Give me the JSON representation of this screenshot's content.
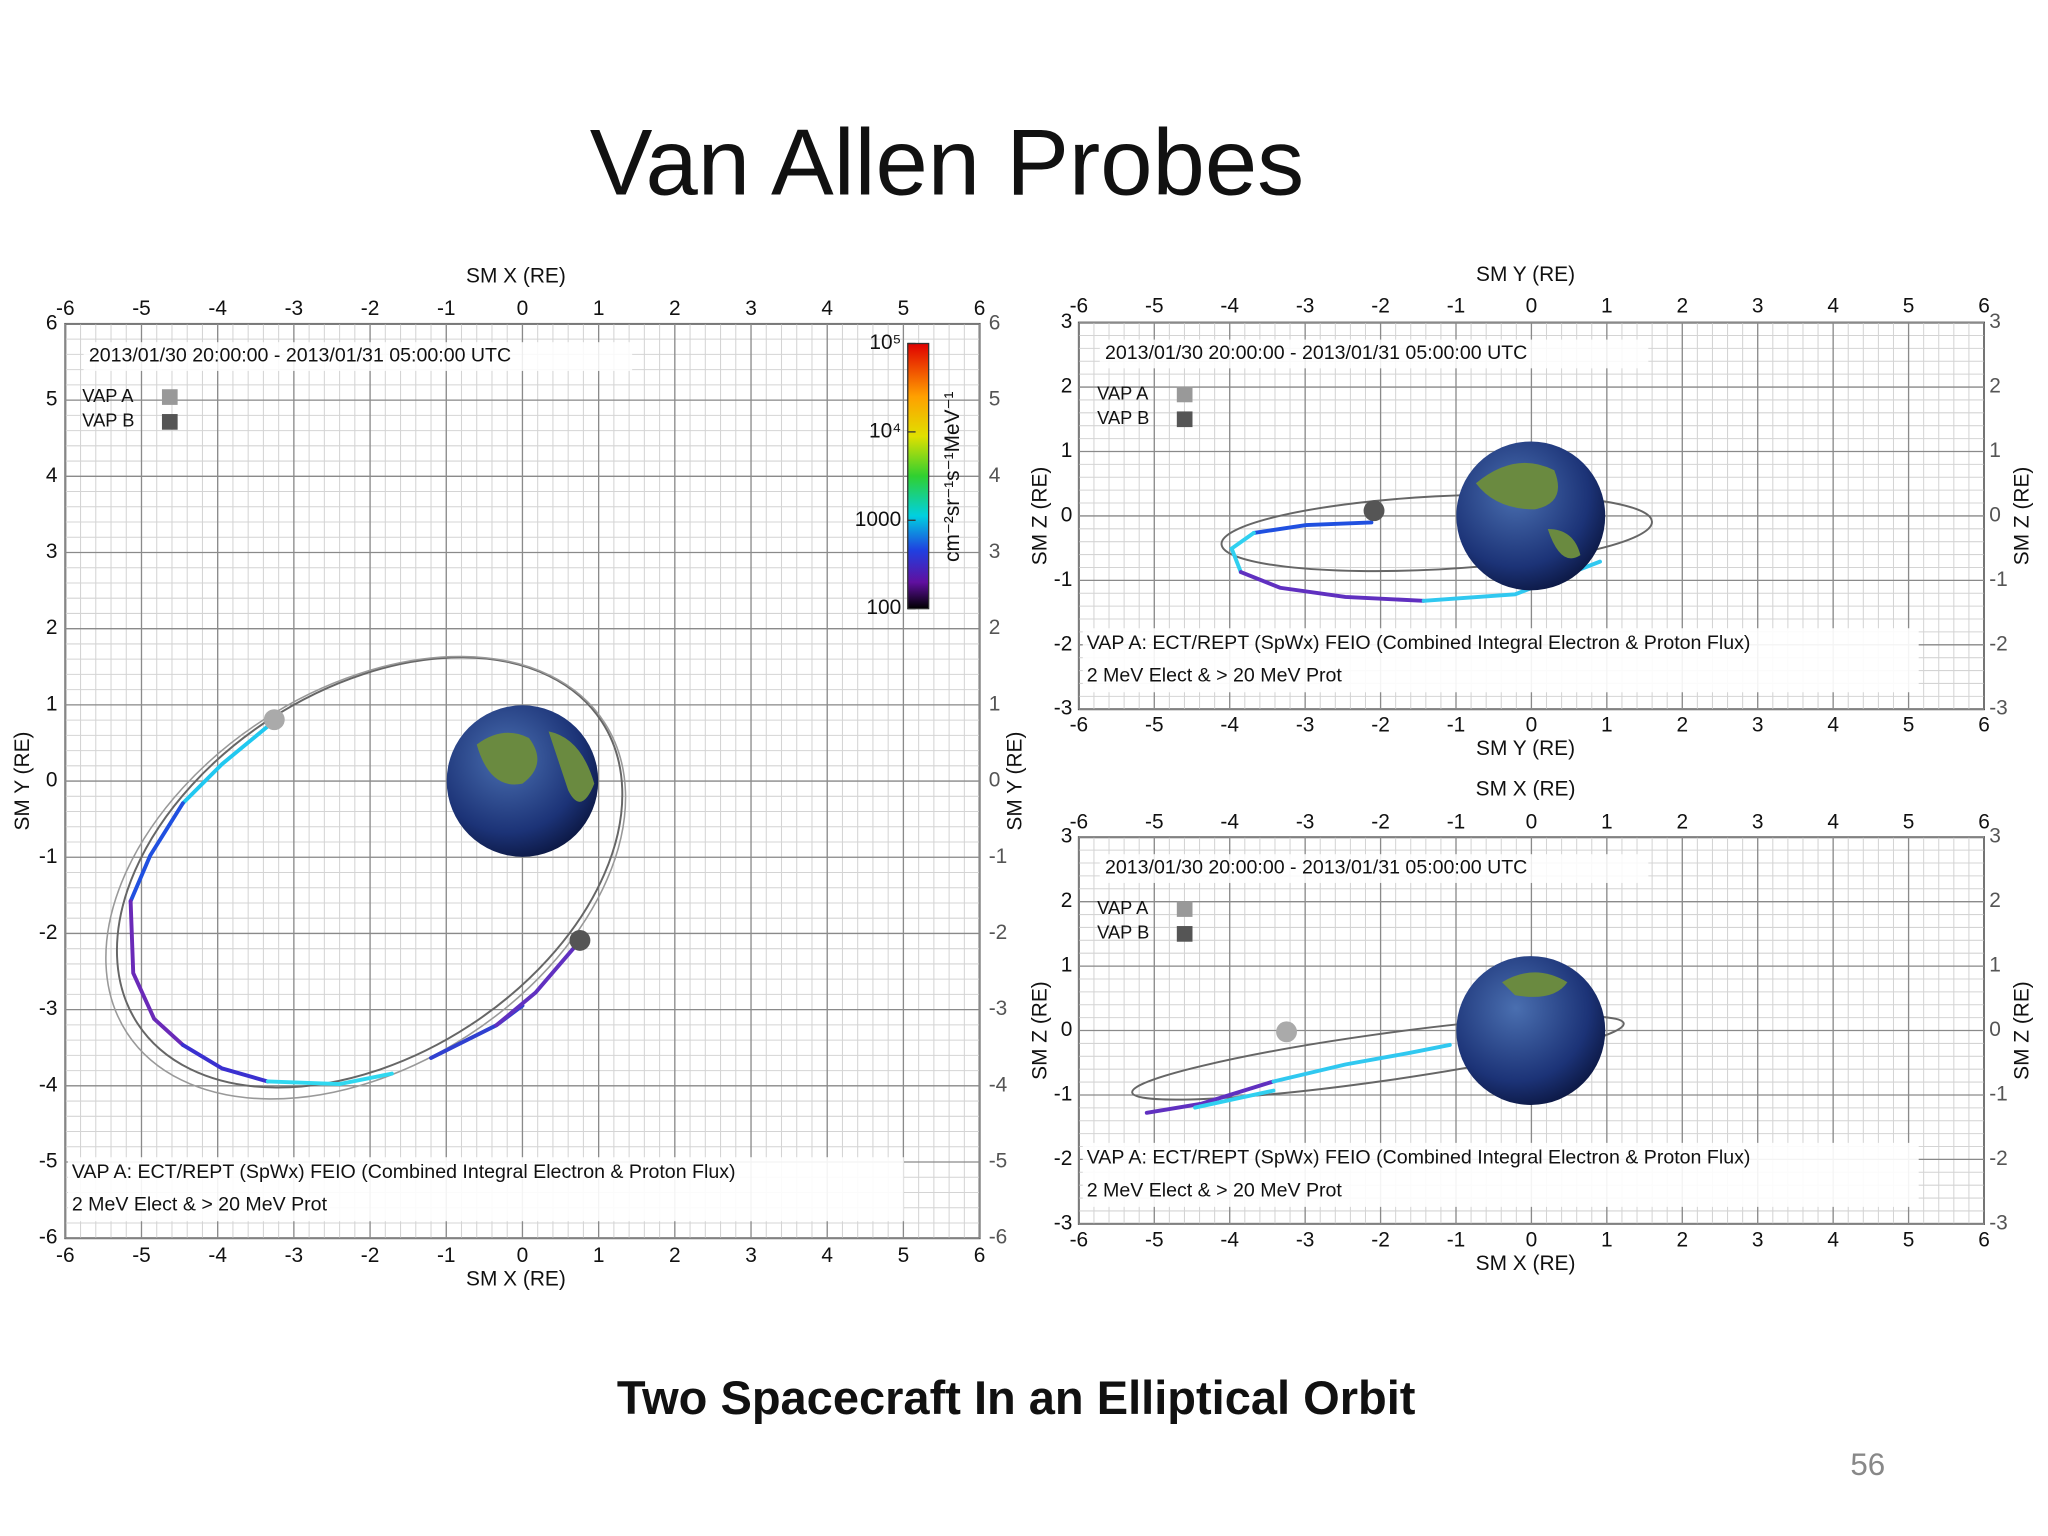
{
  "title": "Van Allen Probes",
  "plots": [
    {
      "top_label": "SM X (RE)",
      "bottom_label": "SM X (RE)",
      "left_label": "SM Y (RE)",
      "right_label": "SM Y (RE)",
      "xlim": [
        -6,
        6
      ],
      "ylim": [
        -6,
        6
      ],
      "xticks": [
        -6,
        -5,
        -4,
        -3,
        -2,
        -1,
        0,
        1,
        2,
        3,
        4,
        5,
        6
      ],
      "yticks": [
        -6,
        -5,
        -4,
        -3,
        -2,
        -1,
        0,
        1,
        2,
        3,
        4,
        5,
        6
      ],
      "time_range": "2013/01/30 20:00:00 - 2013/01/31 05:00:00 UTC",
      "legend": [
        "VAP A",
        "VAP B"
      ],
      "annotation": [
        "VAP A: ECT/REPT (SpWx) FEIO (Combined Integral Electron & Proton Flux)",
        "2 MeV Elect & > 20 MeV Prot"
      ],
      "colorbar": {
        "label": "cm⁻²sr⁻¹s⁻¹MeV⁻¹",
        "ticks": [
          100,
          1000,
          {
            "value": 10000,
            "label": "10⁴"
          },
          {
            "value": 100000,
            "label": "10⁵"
          }
        ]
      }
    },
    {
      "top_label": "SM Y (RE)",
      "bottom_label": "SM Y (RE)",
      "left_label": "SM Z (RE)",
      "right_label": "SM Z (RE)",
      "xlim": [
        -6,
        6
      ],
      "ylim": [
        -3,
        3
      ],
      "xticks": [
        -6,
        -5,
        -4,
        -3,
        -2,
        -1,
        0,
        1,
        2,
        3,
        4,
        5,
        6
      ],
      "yticks": [
        -3,
        -2,
        -1,
        0,
        1,
        2,
        3
      ],
      "time_range": "2013/01/30 20:00:00 - 2013/01/31 05:00:00 UTC",
      "legend": [
        "VAP A",
        "VAP B"
      ],
      "annotation": [
        "VAP A: ECT/REPT (SpWx) FEIO (Combined Integral Electron & Proton Flux)",
        "2 MeV Elect & > 20 MeV Prot"
      ]
    },
    {
      "top_label": "SM X (RE)",
      "bottom_label": "SM X (RE)",
      "left_label": "SM Z (RE)",
      "right_label": "SM Z (RE)",
      "xlim": [
        -6,
        6
      ],
      "ylim": [
        -3,
        3
      ],
      "xticks": [
        -6,
        -5,
        -4,
        -3,
        -2,
        -1,
        0,
        1,
        2,
        3,
        4,
        5,
        6
      ],
      "yticks": [
        -3,
        -2,
        -1,
        0,
        1,
        2,
        3
      ],
      "time_range": "2013/01/30 20:00:00 - 2013/01/31 05:00:00 UTC",
      "legend": [
        "VAP A",
        "VAP B"
      ],
      "annotation": [
        "VAP A: ECT/REPT (SpWx) FEIO (Combined Integral Electron & Proton Flux)",
        "2 MeV Elect & > 20 MeV Prot"
      ]
    }
  ],
  "caption": "Two Spacecraft In an Elliptical Orbit",
  "page_number": "56"
}
